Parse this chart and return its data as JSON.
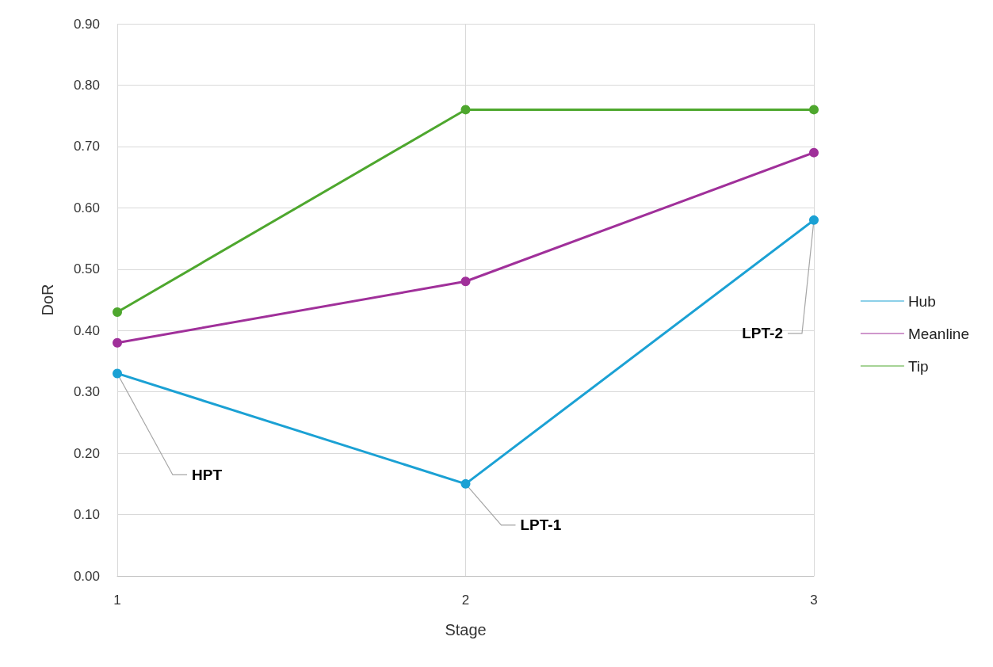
{
  "chart_data": {
    "type": "line",
    "xlabel": "Stage",
    "ylabel": "DoR",
    "x": [
      1,
      2,
      3
    ],
    "xlim": [
      1,
      3
    ],
    "xticks": [
      1,
      2,
      3
    ],
    "ylim": [
      0,
      0.9
    ],
    "yticks": [
      {
        "value": 0,
        "label": "0.00"
      },
      {
        "value": 0.1,
        "label": "0.10"
      },
      {
        "value": 0.2,
        "label": "0.20"
      },
      {
        "value": 0.3,
        "label": "0.30"
      },
      {
        "value": 0.4,
        "label": "0.40"
      },
      {
        "value": 0.5,
        "label": "0.50"
      },
      {
        "value": 0.6,
        "label": "0.60"
      },
      {
        "value": 0.7,
        "label": "0.70"
      },
      {
        "value": 0.8,
        "label": "0.80"
      },
      {
        "value": 0.9,
        "label": "0.90"
      }
    ],
    "series": [
      {
        "name": "Hub",
        "color": "#1ba1d4",
        "values": [
          0.33,
          0.15,
          0.58
        ]
      },
      {
        "name": "Meanline",
        "color": "#a0309a",
        "values": [
          0.38,
          0.48,
          0.69
        ]
      },
      {
        "name": "Tip",
        "color": "#4ea72e",
        "values": [
          0.43,
          0.76,
          0.76
        ]
      }
    ],
    "annotations": [
      {
        "text": "HPT",
        "x": 1,
        "y": 0.33
      },
      {
        "text": "LPT-1",
        "x": 2,
        "y": 0.15
      },
      {
        "text": "LPT-2",
        "x": 3,
        "y": 0.58
      }
    ],
    "grid": true,
    "legend": "right",
    "marker": "circle",
    "line_style": "solid"
  }
}
